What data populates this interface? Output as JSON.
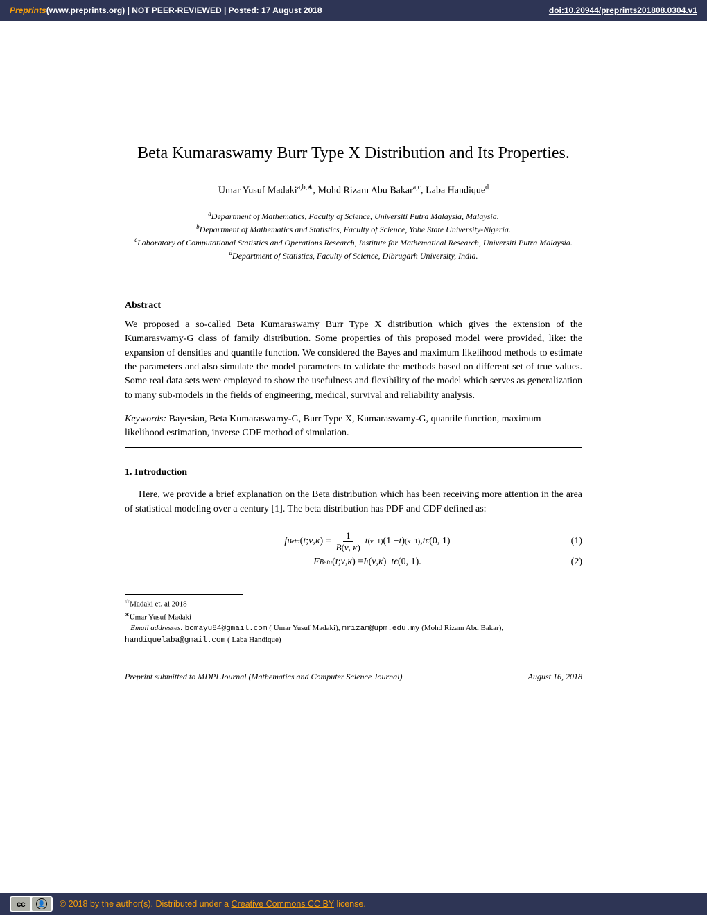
{
  "colors": {
    "header_bg": "#2e3555",
    "accent": "#f59e0b",
    "text": "#000000",
    "white": "#ffffff"
  },
  "topbar": {
    "preprints_label": "Preprints",
    "site_text": " (www.preprints.org)  |  NOT PEER-REVIEWED  |  Posted: 17 August 2018",
    "doi": "doi:10.20944/preprints201808.0304.v1"
  },
  "title": "Beta Kumaraswamy Burr Type X Distribution and Its Properties.",
  "authors_html": "Umar Yusuf Madaki",
  "author_sup1": "a,b,∗",
  "author2": ", Mohd Rizam Abu Bakar",
  "author_sup2": "a,c",
  "author3": ",  Laba Handique",
  "author_sup3": "d",
  "affiliations": {
    "a": "Department of Mathematics, Faculty of Science, Universiti Putra Malaysia, Malaysia.",
    "b": "Department of Mathematics and Statistics, Faculty of Science, Yobe State University-Nigeria.",
    "c": "Laboratory of Computational Statistics and Operations Research, Institute for Mathematical Research, Universiti Putra Malaysia.",
    "d": "Department of Statistics, Faculty of Science, Dibrugarh University, India."
  },
  "abstract_heading": "Abstract",
  "abstract": "We proposed a so-called Beta Kumaraswamy Burr Type X distribution which gives the extension of the Kumaraswamy-G class of family distribution. Some properties of this proposed model were provided, like: the expansion of densities and quantile function. We considered the Bayes and maximum likelihood methods to estimate the parameters and also simulate the model parameters to validate the methods based on different set of true values. Some real data sets were employed to show the usefulness and flexibility of the model which serves as generalization to many sub-models in the fields of engineering, medical, survival and reliability analysis.",
  "keywords_label": "Keywords:",
  "keywords": "   Bayesian, Beta Kumaraswamy-G, Burr Type X, Kumaraswamy-G, quantile function, maximum likelihood estimation, inverse CDF method of simulation.",
  "section1_heading": "1.  Introduction",
  "intro_text": "Here, we provide a brief explanation on the Beta distribution which has been receiving more attention in the area of statistical modeling over a century [1]. The beta distribution has PDF and CDF defined as:",
  "equations": {
    "eq1_num": "(1)",
    "eq2_num": "(2)"
  },
  "footnotes": {
    "star": "Madaki et. al 2018",
    "corr": "Umar Yusuf Madaki",
    "email_label": "Email addresses:",
    "email1": "bomayu84@gmail.com",
    "name1": " ( Umar Yusuf Madaki), ",
    "email2": "mrizam@upm.edu.my",
    "name2": " (Mohd Rizam Abu Bakar), ",
    "email3": "handiquelaba@gmail.com",
    "name3": " ( Laba Handique)"
  },
  "preprint_footer_left": "Preprint submitted to MDPI Journal (Mathematics and Computer Science Journal)",
  "preprint_footer_right": "August 16, 2018",
  "bottombar": {
    "copyright": "© 2018 by the author(s). Distributed under a ",
    "license_link": "Creative Commons CC BY",
    "license_tail": " license."
  }
}
